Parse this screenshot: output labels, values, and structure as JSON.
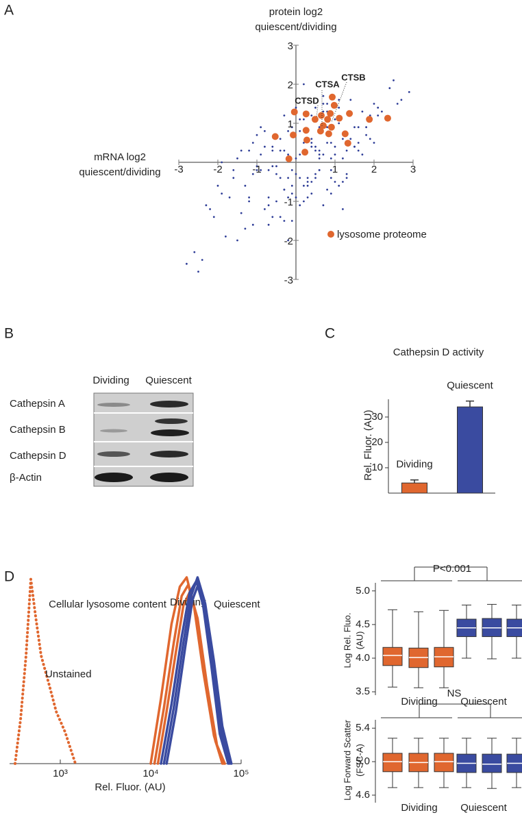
{
  "panel_labels": [
    "A",
    "B",
    "C",
    "D"
  ],
  "blot": {
    "columns": [
      "Dividing",
      "Quiescent"
    ],
    "rows": [
      "Cathepsin  A",
      "Cathepsin  B",
      "Cathepsin  D",
      "β-Actin"
    ]
  },
  "chart_data": [
    {
      "type": "scatter",
      "y_label": [
        "protein log2",
        "quiescent/dividing"
      ],
      "x_label": [
        "mRNA log2",
        "quiescent/dividing"
      ],
      "xlim": [
        -3,
        3
      ],
      "ylim": [
        -3,
        3
      ],
      "xticks": [
        -3,
        -2,
        -1,
        1,
        2,
        3
      ],
      "yticks": [
        3,
        2,
        1,
        -1,
        -2,
        -3
      ],
      "annotations": [
        "CTSA",
        "CTSB",
        "CTSD"
      ],
      "series": [
        {
          "color": "#2e3d97",
          "x": [
            -0.5,
            0.2,
            0.8,
            -1.2,
            1.5,
            0.1,
            -0.3,
            0.6,
            -0.8,
            1.1,
            0.3,
            -0.1,
            0.9,
            -1.6,
            2.1,
            -0.6,
            0.4,
            1.3,
            -0.2,
            0.7,
            -1.0,
            0.5,
            1.8,
            -0.4,
            0.0,
            1.0,
            -1.4,
            0.2,
            0.6,
            -0.7,
            1.4,
            -0.9,
            0.3,
            2.4,
            -2.0,
            0.8,
            -0.1,
            1.2,
            -0.5,
            0.4,
            -1.8,
            0.9,
            0.1,
            -0.3,
            1.6,
            -1.1,
            0.5,
            2.0,
            -0.6,
            0.0,
            0.7,
            -1.3,
            1.1,
            0.2,
            -0.8,
            1.9,
            -0.2,
            0.6,
            -2.3,
            1.3,
            0.4,
            -0.4,
            0.9,
            -1.5,
            2.6,
            0.1,
            -0.9,
            1.5,
            -0.1,
            0.3,
            -2.6,
            1.7,
            -0.7,
            0.5,
            1.0,
            -1.2,
            0.8,
            -0.3,
            2.2,
            0.0,
            -0.6,
            1.2,
            -1.7,
            0.3,
            0.7,
            -0.2,
            1.4,
            -1.0,
            0.9,
            2.9,
            0.2,
            -0.5,
            1.6,
            -2.1,
            0.6,
            -1.4,
            1.0,
            -0.1,
            0.4,
            1.8,
            -1.1,
            0.8,
            -0.4,
            2.3,
            0.1,
            -0.8,
            1.3,
            -1.9,
            0.5,
            0.9,
            -2.4,
            -0.3,
            1.1,
            0.6,
            -1.6,
            2.0,
            -0.7,
            0.3,
            1.5,
            -0.2,
            0.0,
            -1.2,
            0.7,
            1.9,
            -0.5,
            1.2,
            -2.2,
            0.4,
            -0.9,
            2.5,
            0.9,
            -0.6,
            1.4,
            -1.3,
            0.2,
            2.7,
            -1.0,
            0.6,
            -2.8,
            1.1,
            -0.2,
            0.5,
            -1.5,
            1.7,
            0.3,
            -0.7,
            1.0,
            -2.5,
            0.8,
            0.1,
            1.2,
            -0.4,
            0.4,
            -1.9,
            2.1,
            -0.1,
            0.7,
            -1.1,
            1.6,
            -0.3
          ],
          "values": [
            -0.1,
            0.5,
            0.9,
            -0.9,
            0.4,
            -0.4,
            0.3,
            -0.2,
            -1.2,
            1.0,
            0.8,
            -0.6,
            0.1,
            -0.4,
            1.4,
            0.3,
            -0.8,
            0.3,
            0.2,
            1.3,
            -0.2,
            -0.3,
            0.9,
            0.6,
            0.1,
            -0.5,
            -1.3,
            1.1,
            0.2,
            -0.9,
            1.6,
            0.2,
            -0.4,
            1.9,
            -0.6,
            0.5,
            -0.2,
            -0.5,
            0.7,
            1.2,
            -1.9,
            -0.2,
            0.8,
            -0.7,
            0.9,
            -0.3,
            0.4,
            1.5,
            -1.4,
            -0.9,
            0.2,
            -0.6,
            1.4,
            -1.0,
            0.4,
            0.6,
            -0.4,
            0.9,
            -1.1,
            -0.4,
            -0.5,
            0.3,
            0.5,
            -2.0,
            1.5,
            1.1,
            -0.2,
            0.4,
            -0.8,
            0.6,
            -2.3,
            0.2,
            -0.2,
            1.4,
            0.2,
            -1.0,
            -0.7,
            -1.5,
            1.3,
            -0.3,
            0.4,
            0.6,
            -0.9,
            -0.9,
            1.7,
            0.8,
            1.2,
            -0.1,
            -0.4,
            1.8,
            -0.6,
            -1.0,
            0.5,
            -1.4,
            -0.2,
            0.3,
            1.1,
            0.9,
            0.6,
            0.7,
            -1.6,
            1.3,
            -0.4,
            1.1,
            -1.1,
            0.8,
            -0.3,
            -0.8,
            0.3,
            0.9,
            -2.5,
            1.2,
            1.6,
            0.1,
            -0.2,
            0.5,
            -1.6,
            -0.5,
            0.9,
            -2.0,
            1.4,
            0.3,
            -1.1,
            1.2,
            -0.3,
            0.1,
            -1.2,
            0.5,
            0.9,
            2.1,
            -0.8,
            -0.1,
            0.6,
            -1.7,
            2.0,
            1.6,
            0.7,
            0.3,
            -2.6,
            -0.6,
            -0.9,
            -0.4,
            0.1,
            1.3,
            -0.6,
            -1.1,
            0.4,
            -2.8,
            1.5,
            0.2,
            -1.2,
            -1.4,
            0.4,
            0.0,
            1.2,
            -1.5,
            1.5,
            0.5,
            0.3,
            -0.7
          ]
        },
        {
          "name": "lysosome proteome",
          "color": "#e0672f",
          "x": [
            0.93,
            0.98,
            0.88,
            -0.04,
            0.26,
            0.49,
            0.65,
            0.81,
            1.11,
            1.37,
            1.88,
            2.35,
            0.7,
            0.91,
            0.63,
            0.26,
            -0.53,
            -0.07,
            0.28,
            1.26,
            1.33,
            0.23,
            -0.18,
            0.84
          ],
          "values": [
            1.67,
            1.46,
            1.25,
            1.29,
            1.24,
            1.1,
            1.2,
            1.1,
            1.13,
            1.25,
            1.1,
            1.13,
            0.94,
            0.9,
            0.8,
            0.82,
            0.66,
            0.7,
            0.57,
            0.73,
            0.49,
            0.26,
            0.09,
            0.73
          ]
        }
      ]
    },
    {
      "type": "bar",
      "title": "Cathepsin D activity",
      "y_label": "Rel. Fluor. (AU)",
      "categories": [
        "Dividing",
        "Quiescent"
      ],
      "values": [
        4,
        34
      ],
      "errors": [
        1.2,
        2.3
      ],
      "colors": [
        "#e0672f",
        "#3a4ba0"
      ],
      "ylim": [
        0,
        37
      ],
      "yticks": [
        10,
        20,
        30
      ]
    },
    {
      "type": "line",
      "title": "Cellular lysosome content",
      "x_label": "Rel. Fluor. (AU)",
      "log_x": true,
      "xlim": [
        275,
        100000
      ],
      "xticks": [
        {
          "value": 1000,
          "label": "10³"
        },
        {
          "value": 10000,
          "label": "10⁴"
        },
        {
          "value": 100000,
          "label": "10⁵"
        }
      ],
      "ylim": [
        0,
        100
      ],
      "series": [
        {
          "name": "Unstained",
          "color": "#e0672f",
          "dash": "dotted",
          "curves": [
            {
              "x": [
                316,
                364,
                418,
                472,
                534,
                614,
                757,
                900,
                1130,
                1470
              ],
              "values": [
                0,
                24,
                58,
                99,
                79,
                58,
                42,
                28,
                17,
                0
              ]
            }
          ]
        },
        {
          "name": "Dividing",
          "color": "#e0672f",
          "dash": "solid",
          "curves": [
            {
              "x": [
                10000,
                13000,
                17000,
                21000,
                25000,
                30000,
                38000,
                50000,
                62000
              ],
              "values": [
                0,
                35,
                75,
                95,
                100,
                85,
                50,
                15,
                0
              ]
            },
            {
              "x": [
                11000,
                14000,
                18000,
                22000,
                26000,
                32000,
                40000,
                52000,
                64000
              ],
              "values": [
                0,
                30,
                65,
                90,
                96,
                80,
                45,
                12,
                0
              ]
            },
            {
              "x": [
                12000,
                15000,
                19000,
                23000,
                27000,
                33000,
                42000,
                54000,
                66000
              ],
              "values": [
                0,
                28,
                60,
                85,
                92,
                78,
                42,
                10,
                0
              ]
            }
          ]
        },
        {
          "name": "Quiescent",
          "color": "#3a4ba0",
          "dash": "solid",
          "curves": [
            {
              "x": [
                14000,
                18000,
                23000,
                28000,
                33000,
                39000,
                48000,
                60000,
                75000
              ],
              "values": [
                0,
                30,
                65,
                90,
                100,
                88,
                55,
                18,
                0
              ]
            },
            {
              "x": [
                13000,
                17000,
                22000,
                27000,
                32000,
                38000,
                47000,
                58000,
                72000
              ],
              "values": [
                0,
                32,
                68,
                92,
                98,
                85,
                52,
                16,
                0
              ]
            },
            {
              "x": [
                15000,
                19000,
                24000,
                29000,
                34000,
                40000,
                50000,
                62000,
                78000
              ],
              "values": [
                0,
                28,
                62,
                88,
                97,
                86,
                55,
                20,
                0
              ]
            }
          ]
        }
      ]
    },
    {
      "type": "box",
      "y_label": [
        "Log Rel. Fluo.",
        "(AU)"
      ],
      "groups": [
        "Dividing",
        "Quiescent"
      ],
      "annotation": "P<0.001",
      "ylim": [
        3.45,
        5.12
      ],
      "yticks": [
        3.5,
        {
          "value": 4,
          "label": "4.0"
        },
        4.5,
        {
          "value": 5,
          "label": "5.0"
        }
      ],
      "series": [
        {
          "color": "#e0672f",
          "boxes": [
            {
              "whislo": 3.57,
              "q1": 3.89,
              "med": 4.04,
              "q3": 4.16,
              "whishi": 4.72
            },
            {
              "whislo": 3.56,
              "q1": 3.86,
              "med": 4.01,
              "q3": 4.15,
              "whishi": 4.69
            },
            {
              "whislo": 3.56,
              "q1": 3.87,
              "med": 4.02,
              "q3": 4.16,
              "whishi": 4.71
            }
          ]
        },
        {
          "color": "#3a4ba0",
          "boxes": [
            {
              "whislo": 4.0,
              "q1": 4.32,
              "med": 4.45,
              "q3": 4.58,
              "whishi": 4.79
            },
            {
              "whislo": 3.99,
              "q1": 4.32,
              "med": 4.45,
              "q3": 4.59,
              "whishi": 4.8
            },
            {
              "whislo": 4.0,
              "q1": 4.32,
              "med": 4.45,
              "q3": 4.58,
              "whishi": 4.79
            }
          ]
        }
      ]
    },
    {
      "type": "box",
      "y_label": [
        "Log Forward Scatter",
        "(FSC-A)"
      ],
      "groups": [
        "Dividing",
        "Quiescent"
      ],
      "annotation": "NS",
      "ylim": [
        4.51,
        5.5
      ],
      "yticks": [
        4.6,
        {
          "value": 5,
          "label": "5.0"
        },
        5.4
      ],
      "series": [
        {
          "color": "#e0672f",
          "boxes": [
            {
              "whislo": 4.69,
              "q1": 4.88,
              "med": 5.0,
              "q3": 5.1,
              "whishi": 5.28
            },
            {
              "whislo": 4.69,
              "q1": 4.88,
              "med": 4.99,
              "q3": 5.1,
              "whishi": 5.28
            },
            {
              "whislo": 4.69,
              "q1": 4.88,
              "med": 5.0,
              "q3": 5.1,
              "whishi": 5.28
            }
          ]
        },
        {
          "color": "#3a4ba0",
          "boxes": [
            {
              "whislo": 4.69,
              "q1": 4.87,
              "med": 4.98,
              "q3": 5.09,
              "whishi": 5.28
            },
            {
              "whislo": 4.68,
              "q1": 4.87,
              "med": 4.97,
              "q3": 5.09,
              "whishi": 5.28
            },
            {
              "whislo": 4.69,
              "q1": 4.87,
              "med": 4.98,
              "q3": 5.09,
              "whishi": 5.28
            }
          ]
        }
      ]
    }
  ]
}
